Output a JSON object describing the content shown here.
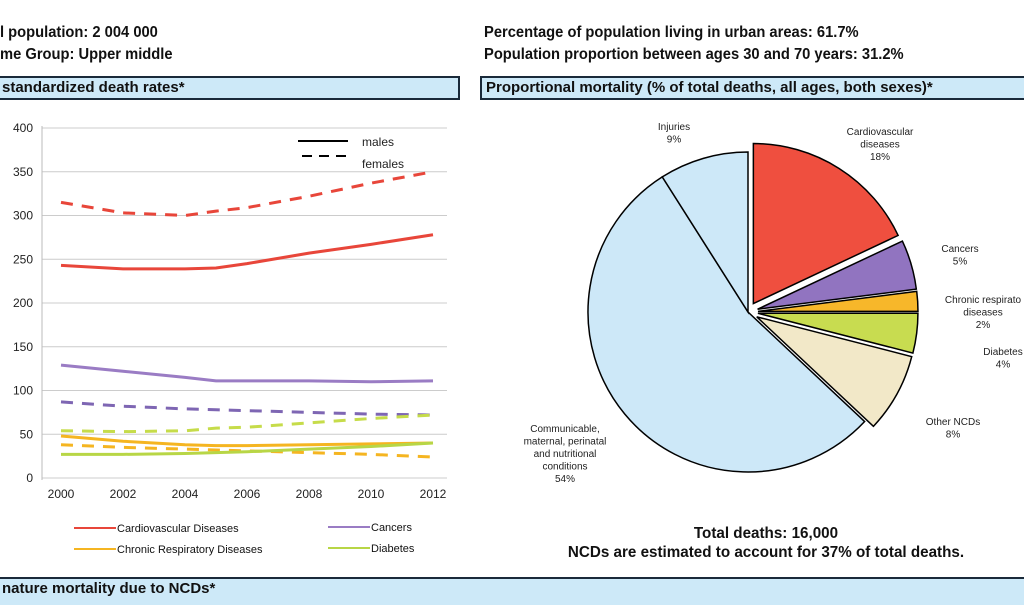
{
  "header": {
    "population": "l population:  2 004 000",
    "income_group": "me Group:  Upper middle",
    "urban": "Percentage of population living in urban areas: 61.7%",
    "age_proportion": "Population proportion between ages 30 and 70 years:  31.2%"
  },
  "sections": {
    "left_title": "standardized death rates*",
    "right_title": "Proportional mortality (% of total deaths, all ages, both sexes)*",
    "bottom_title": "nature mortality due to NCDs*"
  },
  "totals": {
    "total_deaths": "Total deaths: 16,000",
    "ncd_share": "NCDs are estimated to account for 37% of total deaths."
  },
  "chart_data": [
    {
      "type": "line",
      "x": [
        2000,
        2002,
        2004,
        2005,
        2006,
        2008,
        2010,
        2012
      ],
      "xticks": [
        "2000",
        "2002",
        "2004",
        "2006",
        "2008",
        "2010",
        "2012"
      ],
      "yticks": [
        "0",
        "50",
        "100",
        "150",
        "200",
        "250",
        "300",
        "350",
        "400"
      ],
      "ylim": [
        0,
        400
      ],
      "xlim": [
        2000,
        2012
      ],
      "grid": true,
      "style_legend": {
        "solid": "males",
        "dashed": "females",
        "placement": "top-right"
      },
      "series": [
        {
          "name": "Cardiovascular Diseases",
          "sex": "males",
          "color": "#e8463a",
          "values": [
            243,
            239,
            239,
            240,
            245,
            257,
            267,
            278
          ]
        },
        {
          "name": "Cardiovascular Diseases",
          "sex": "females",
          "color": "#e8463a",
          "values": [
            315,
            303,
            300,
            305,
            309,
            322,
            337,
            350
          ]
        },
        {
          "name": "Cancers",
          "sex": "males",
          "color": "#9a7cc4",
          "values": [
            129,
            122,
            115,
            111,
            111,
            111,
            110,
            111
          ]
        },
        {
          "name": "Cancers",
          "sex": "females",
          "color": "#7e66b3",
          "values": [
            87,
            82,
            79,
            78,
            77,
            75,
            73,
            72
          ]
        },
        {
          "name": "Chronic Respiratory Diseases",
          "sex": "males",
          "color": "#f5b521",
          "values": [
            48,
            42,
            38,
            37,
            37,
            38,
            39,
            40
          ]
        },
        {
          "name": "Chronic Respiratory Diseases",
          "sex": "females",
          "color": "#f5b521",
          "values": [
            38,
            35,
            33,
            32,
            31,
            29,
            27,
            24
          ]
        },
        {
          "name": "Diabetes",
          "sex": "males",
          "color": "#b8d646",
          "values": [
            27,
            27,
            28,
            29,
            30,
            33,
            36,
            40
          ]
        },
        {
          "name": "Diabetes",
          "sex": "females",
          "color": "#c6dc4a",
          "values": [
            54,
            53,
            54,
            57,
            58,
            63,
            68,
            72
          ]
        }
      ],
      "legend": [
        "Cardiovascular Diseases",
        "Cancers",
        "Chronic Respiratory Diseases",
        "Diabetes"
      ]
    },
    {
      "type": "pie",
      "slices": [
        {
          "label": [
            "Cardiovascular",
            "diseases"
          ],
          "pct": "18%",
          "value": 18,
          "color": "#ef4f3f",
          "exploded": true
        },
        {
          "label": [
            "Cancers"
          ],
          "pct": "5%",
          "value": 5,
          "color": "#9174c0",
          "exploded": true
        },
        {
          "label": [
            "Chronic respirato",
            "diseases"
          ],
          "pct": "2%",
          "value": 2,
          "color": "#f7b72a",
          "exploded": true
        },
        {
          "label": [
            "Diabetes"
          ],
          "pct": "4%",
          "value": 4,
          "color": "#c8dc50",
          "exploded": true
        },
        {
          "label": [
            "Other NCDs"
          ],
          "pct": "8%",
          "value": 8,
          "color": "#f2e8c8",
          "exploded": true
        },
        {
          "label": [
            "Communicable,",
            "maternal, perinatal",
            "and nutritional",
            "conditions"
          ],
          "pct": "54%",
          "value": 54,
          "color": "#cde8f8",
          "exploded": false
        },
        {
          "label": [
            "Injuries"
          ],
          "pct": "9%",
          "value": 9,
          "color": "#cde8f8",
          "exploded": false
        }
      ]
    }
  ]
}
